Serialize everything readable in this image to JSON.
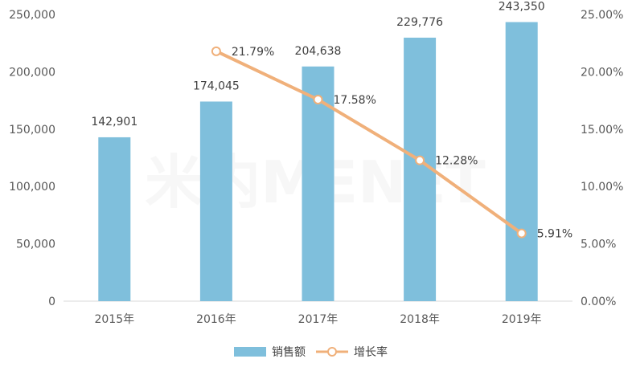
{
  "chart_data": {
    "type": "bar",
    "categories": [
      "2015年",
      "2016年",
      "2017年",
      "2018年",
      "2019年"
    ],
    "series": [
      {
        "name": "销售额",
        "type": "bar",
        "axis": "left",
        "values": [
          142901,
          174045,
          204638,
          229776,
          243350
        ],
        "labels": [
          "142,901",
          "174,045",
          "204,638",
          "229,776",
          "243,350"
        ]
      },
      {
        "name": "增长率",
        "type": "line",
        "axis": "right",
        "values": [
          null,
          21.79,
          17.58,
          12.28,
          5.91
        ],
        "labels": [
          "",
          "21.79%",
          "17.58%",
          "12.28%",
          "5.91%"
        ]
      }
    ],
    "y_left": {
      "min": 0,
      "max": 250000,
      "ticks": [
        "0",
        "50,000",
        "100,000",
        "150,000",
        "200,000",
        "250,000"
      ]
    },
    "y_right": {
      "min": 0,
      "max": 25,
      "ticks": [
        "0.00%",
        "5.00%",
        "10.00%",
        "15.00%",
        "20.00%",
        "25.00%"
      ]
    },
    "legend_position": "bottom",
    "grid": false,
    "colors": {
      "bar": "#7fbfdc",
      "line": "#f0b07a",
      "axis": "#d9d9d9",
      "text": "#595959"
    }
  },
  "watermark": {
    "text": "米内MENET"
  }
}
